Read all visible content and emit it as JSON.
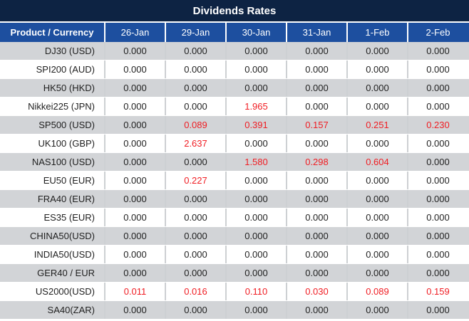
{
  "title": "Dividends Rates",
  "colors": {
    "title_bg": "#0d2343",
    "header_bg": "#1d4f9f",
    "alt_row_bg": "#d2d4d7",
    "zero_value_text": "#1f1f1f",
    "nonzero_value_text": "#f01d23",
    "header_text": "#ffffff"
  },
  "table": {
    "product_header": "Product / Currency",
    "date_headers": [
      "26-Jan",
      "29-Jan",
      "30-Jan",
      "31-Jan",
      "1-Feb",
      "2-Feb"
    ],
    "zero_value": "0.000",
    "rows": [
      {
        "product": "DJ30 (USD)",
        "values": [
          "0.000",
          "0.000",
          "0.000",
          "0.000",
          "0.000",
          "0.000"
        ]
      },
      {
        "product": "SPI200 (AUD)",
        "values": [
          "0.000",
          "0.000",
          "0.000",
          "0.000",
          "0.000",
          "0.000"
        ]
      },
      {
        "product": "HK50 (HKD)",
        "values": [
          "0.000",
          "0.000",
          "0.000",
          "0.000",
          "0.000",
          "0.000"
        ]
      },
      {
        "product": "Nikkei225 (JPN)",
        "values": [
          "0.000",
          "0.000",
          "1.965",
          "0.000",
          "0.000",
          "0.000"
        ]
      },
      {
        "product": "SP500 (USD)",
        "values": [
          "0.000",
          "0.089",
          "0.391",
          "0.157",
          "0.251",
          "0.230"
        ]
      },
      {
        "product": "UK100 (GBP)",
        "values": [
          "0.000",
          "2.637",
          "0.000",
          "0.000",
          "0.000",
          "0.000"
        ]
      },
      {
        "product": "NAS100 (USD)",
        "values": [
          "0.000",
          "0.000",
          "1.580",
          "0.298",
          "0.604",
          "0.000"
        ]
      },
      {
        "product": "EU50 (EUR)",
        "values": [
          "0.000",
          "0.227",
          "0.000",
          "0.000",
          "0.000",
          "0.000"
        ]
      },
      {
        "product": "FRA40 (EUR)",
        "values": [
          "0.000",
          "0.000",
          "0.000",
          "0.000",
          "0.000",
          "0.000"
        ]
      },
      {
        "product": "ES35 (EUR)",
        "values": [
          "0.000",
          "0.000",
          "0.000",
          "0.000",
          "0.000",
          "0.000"
        ]
      },
      {
        "product": "CHINA50(USD)",
        "values": [
          "0.000",
          "0.000",
          "0.000",
          "0.000",
          "0.000",
          "0.000"
        ]
      },
      {
        "product": "INDIA50(USD)",
        "values": [
          "0.000",
          "0.000",
          "0.000",
          "0.000",
          "0.000",
          "0.000"
        ]
      },
      {
        "product": "GER40 / EUR",
        "values": [
          "0.000",
          "0.000",
          "0.000",
          "0.000",
          "0.000",
          "0.000"
        ]
      },
      {
        "product": "US2000(USD)",
        "values": [
          "0.011",
          "0.016",
          "0.110",
          "0.030",
          "0.089",
          "0.159"
        ]
      },
      {
        "product": "SA40(ZAR)",
        "values": [
          "0.000",
          "0.000",
          "0.000",
          "0.000",
          "0.000",
          "0.000"
        ]
      }
    ]
  }
}
